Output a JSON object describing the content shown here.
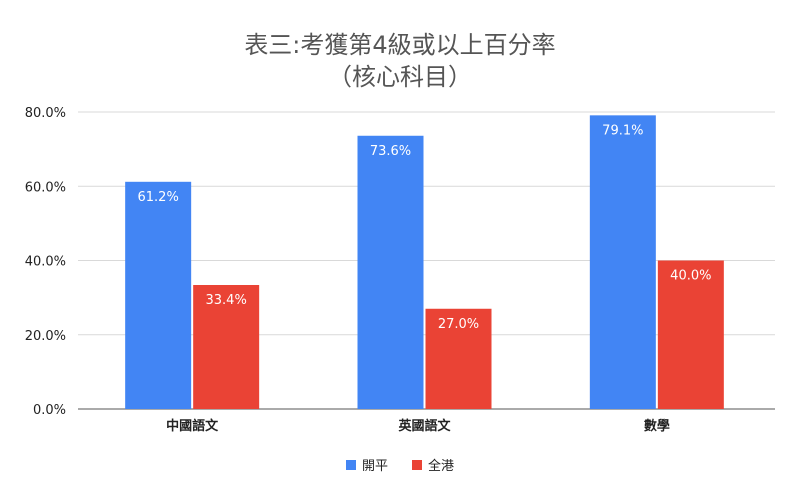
{
  "chart_data": {
    "type": "bar",
    "title_line1": "表三:考獲第4級或以上百分率",
    "title_line2": "（核心科目）",
    "categories": [
      "中國語文",
      "英國語文",
      "數學"
    ],
    "series": [
      {
        "name": "開平",
        "color": "#4285f4",
        "values": [
          61.2,
          73.6,
          79.1
        ],
        "labels": [
          "61.2%",
          "73.6%",
          "79.1%"
        ]
      },
      {
        "name": "全港",
        "color": "#ea4335",
        "values": [
          33.4,
          27.0,
          40.0
        ],
        "labels": [
          "33.4%",
          "27.0%",
          "40.0%"
        ]
      }
    ],
    "yticks": [
      "0.0%",
      "20.0%",
      "40.0%",
      "60.0%",
      "80.0%"
    ],
    "ylim": [
      0,
      80
    ],
    "legend_position": "bottom",
    "grid": true
  }
}
